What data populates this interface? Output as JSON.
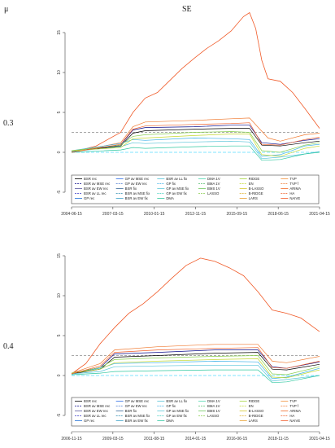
{
  "header": {
    "param_label": "μ",
    "metric_label": "SE"
  },
  "colors": {
    "BSR rec": "#000000",
    "BSR av MSE rec": "#0a0a8a",
    "BSR av EW rec": "#5a5aa0",
    "BSR av LL rec": "#3a3ac8",
    "GP rec": "#1e6fd6",
    "GP av MSE rec": "#2d6ee8",
    "GP av EW rec": "#4a7ad0",
    "BSR fix": "#3a6a9a",
    "BSR av MSE fix": "#2a8ab0",
    "BSR av EW fix": "#3aa0c8",
    "BSR av LL fix": "#55c3d8",
    "GP fix": "#3ab0e8",
    "GP av MSE fix": "#60c8d8",
    "GP av EW fix": "#40d0c0",
    "DMA": "#30c8a0",
    "DMA 1V": "#50d8b0",
    "BMA 1V": "#58c070",
    "BMS 1V": "#70c860",
    "LASSO": "#8ad050",
    "RIDGE": "#a6d640",
    "EN": "#c4d830",
    "B-LASSO": "#d6c830",
    "B-RIDGE": "#e0b430",
    "LARS": "#e8a030",
    "TVP": "#f0903a",
    "TVP f": "#f07a30",
    "ARIMA": "#f06a28",
    "HA": "#f0602a",
    "NAIVE": "#f05a28"
  },
  "chart_data": [
    {
      "type": "line",
      "panel_label": "0.3",
      "x_ticks": [
        "2004-06-15",
        "2007-03-15",
        "2010-01-15",
        "2012-11-15",
        "2015-09-15",
        "2018-06-15",
        "2021-04-15"
      ],
      "y_ticks": [
        "-5",
        "0",
        "5",
        "10",
        "15"
      ],
      "ylim": [
        -5,
        15
      ],
      "n_points": 203,
      "legend_columns": [
        [
          "BSR rec",
          "BSR av MSE rec",
          "BSR av EW rec",
          "BSR av LL rec",
          "GP rec"
        ],
        [
          "GP av MSE rec",
          "GP av EW rec",
          "BSR fix",
          "BSR av MSE fix",
          "BSR av EW fix"
        ],
        [
          "BSR av LL fix",
          "GP fix",
          "GP av MSE fix",
          "GP av EW fix",
          "DMA"
        ],
        [
          "DMA 1V",
          "BMA 1V",
          "BMS 1V",
          "LASSO"
        ],
        [
          "RIDGE",
          "EN",
          "B-LASSO",
          "B-RIDGE",
          "LARS"
        ],
        [
          "TVP",
          "TVP f",
          "ARIMA",
          "HA",
          "NAIVE"
        ]
      ],
      "reference_line": 2.5,
      "series": [
        {
          "name": "NAIVE",
          "x": [
            0,
            20,
            40,
            50,
            60,
            70,
            80,
            90,
            100,
            110,
            120,
            130,
            140,
            145,
            150,
            155,
            160,
            170,
            180,
            190,
            202
          ],
          "values": [
            0.0,
            0.8,
            2.5,
            5.0,
            6.8,
            7.5,
            9.0,
            10.5,
            11.8,
            13.0,
            14.0,
            15.2,
            17.0,
            17.5,
            15.5,
            11.5,
            9.2,
            8.9,
            7.5,
            5.5,
            3.0
          ]
        },
        {
          "name": "TVP f",
          "x": [
            0,
            40,
            50,
            60,
            100,
            130,
            145,
            160,
            170,
            190,
            202
          ],
          "values": [
            0.0,
            1.2,
            3.2,
            3.8,
            4.0,
            4.2,
            4.3,
            1.8,
            1.4,
            2.2,
            2.4
          ]
        },
        {
          "name": "BSR av MSE rec",
          "x": [
            0,
            40,
            50,
            60,
            100,
            130,
            145,
            155,
            170,
            190,
            202
          ],
          "values": [
            0.1,
            0.9,
            2.8,
            3.1,
            3.2,
            3.4,
            3.4,
            1.2,
            1.0,
            1.5,
            1.7
          ]
        },
        {
          "name": "BSR rec",
          "x": [
            0,
            40,
            50,
            60,
            100,
            130,
            145,
            155,
            170,
            190,
            202
          ],
          "values": [
            0.1,
            0.8,
            2.4,
            2.7,
            2.9,
            3.0,
            3.0,
            0.9,
            0.8,
            1.2,
            1.4
          ]
        },
        {
          "name": "GP fix",
          "x": [
            0,
            40,
            50,
            60,
            100,
            130,
            145,
            155,
            170,
            190,
            202
          ],
          "values": [
            0.2,
            1.1,
            1.6,
            1.5,
            1.8,
            1.7,
            1.6,
            -0.5,
            -0.3,
            0.8,
            1.0
          ]
        },
        {
          "name": "BSR av LL fix",
          "x": [
            0,
            40,
            50,
            60,
            100,
            130,
            145,
            155,
            170,
            190,
            202
          ],
          "values": [
            0.1,
            0.7,
            1.2,
            1.1,
            1.3,
            1.4,
            1.3,
            -0.8,
            -0.6,
            -0.2,
            0.1
          ]
        },
        {
          "name": "LASSO",
          "x": [
            0,
            40,
            50,
            60,
            100,
            130,
            145,
            155,
            170,
            190,
            202
          ],
          "values": [
            0.2,
            0.9,
            2.0,
            2.2,
            2.5,
            2.6,
            2.5,
            0.2,
            0.0,
            0.9,
            1.2
          ]
        },
        {
          "name": "EN",
          "x": [
            0,
            40,
            50,
            60,
            100,
            130,
            145,
            155,
            170,
            190,
            202
          ],
          "values": [
            0.2,
            0.6,
            1.7,
            1.8,
            2.1,
            2.3,
            2.3,
            -0.3,
            -0.5,
            0.5,
            0.8
          ]
        },
        {
          "name": "DMA",
          "x": [
            0,
            40,
            50,
            60,
            100,
            130,
            145,
            155,
            170,
            190,
            202
          ],
          "values": [
            0.0,
            0.3,
            0.6,
            0.5,
            0.7,
            0.8,
            0.8,
            -1.0,
            -0.9,
            -0.2,
            0.0
          ]
        },
        {
          "name": "HA",
          "x": [
            0,
            40,
            50,
            60,
            100,
            130,
            145,
            155,
            170,
            190,
            202
          ],
          "values": [
            0.0,
            1.0,
            2.9,
            3.3,
            3.5,
            3.6,
            3.7,
            1.0,
            0.9,
            1.6,
            1.9
          ]
        }
      ]
    },
    {
      "type": "line",
      "panel_label": "0.4",
      "x_ticks": [
        "2006-11-15",
        "2009-03-15",
        "2011-08-15",
        "2014-01-15",
        "2016-06-15",
        "2018-11-15",
        "2021-04-15"
      ],
      "y_ticks": [
        "-5",
        "0",
        "5",
        "10",
        "15"
      ],
      "ylim": [
        -5,
        15
      ],
      "n_points": 174,
      "legend_columns": [
        [
          "BSR rec",
          "BSR av MSE rec",
          "BSR av EW rec",
          "BSR av LL rec",
          "GP rec"
        ],
        [
          "GP av MSE rec",
          "GP av EW rec",
          "BSR fix",
          "BSR av MSE fix",
          "BSR av EW fix"
        ],
        [
          "BSR av LL fix",
          "GP fix",
          "GP av MSE fix",
          "GP av EW fix",
          "DMA"
        ],
        [
          "DMA 1V",
          "BMA 1V",
          "BMS 1V",
          "LASSO"
        ],
        [
          "RIDGE",
          "EN",
          "B-LASSO",
          "B-RIDGE",
          "LARS"
        ],
        [
          "TVP",
          "TVP f",
          "ARIMA",
          "HA",
          "NAIVE"
        ]
      ],
      "reference_line": 2.5,
      "series": [
        {
          "name": "NAIVE",
          "x": [
            0,
            10,
            20,
            30,
            40,
            50,
            60,
            70,
            80,
            90,
            100,
            110,
            120,
            130,
            140,
            150,
            160,
            173
          ],
          "values": [
            0.2,
            1.5,
            4.0,
            6.0,
            7.8,
            9.0,
            10.5,
            12.2,
            13.8,
            14.7,
            14.3,
            13.5,
            12.5,
            10.5,
            8.2,
            7.8,
            7.2,
            5.5
          ]
        },
        {
          "name": "TVP f",
          "x": [
            0,
            20,
            30,
            60,
            100,
            130,
            140,
            150,
            173
          ],
          "values": [
            0.3,
            1.5,
            3.2,
            3.6,
            3.9,
            3.9,
            1.8,
            1.6,
            2.4
          ]
        },
        {
          "name": "BSR av MSE rec",
          "x": [
            0,
            20,
            30,
            60,
            100,
            130,
            140,
            150,
            173
          ],
          "values": [
            0.3,
            1.0,
            2.7,
            2.9,
            3.2,
            3.2,
            1.1,
            0.9,
            1.7
          ]
        },
        {
          "name": "BSR rec",
          "x": [
            0,
            20,
            30,
            60,
            100,
            130,
            140,
            150,
            173
          ],
          "values": [
            0.2,
            0.8,
            2.3,
            2.5,
            2.8,
            2.9,
            0.8,
            0.7,
            1.4
          ]
        },
        {
          "name": "GP fix",
          "x": [
            0,
            20,
            30,
            60,
            100,
            130,
            140,
            150,
            173
          ],
          "values": [
            0.3,
            0.9,
            1.5,
            1.6,
            1.8,
            1.7,
            -0.4,
            -0.2,
            0.9
          ]
        },
        {
          "name": "BSR av LL fix",
          "x": [
            0,
            20,
            30,
            60,
            100,
            130,
            140,
            150,
            173
          ],
          "values": [
            0.2,
            0.5,
            1.1,
            1.2,
            1.3,
            1.3,
            -0.7,
            -0.5,
            0.0
          ]
        },
        {
          "name": "LASSO",
          "x": [
            0,
            20,
            30,
            60,
            100,
            130,
            140,
            150,
            173
          ],
          "values": [
            0.3,
            1.0,
            2.0,
            2.2,
            2.4,
            2.5,
            0.2,
            0.1,
            1.1
          ]
        },
        {
          "name": "EN",
          "x": [
            0,
            20,
            30,
            60,
            100,
            130,
            140,
            150,
            173
          ],
          "values": [
            0.3,
            0.8,
            1.6,
            1.8,
            2.0,
            2.1,
            -0.2,
            -0.3,
            0.7
          ]
        },
        {
          "name": "DMA",
          "x": [
            0,
            20,
            30,
            60,
            100,
            130,
            140,
            150,
            173
          ],
          "values": [
            0.1,
            0.3,
            0.5,
            0.6,
            0.7,
            0.7,
            -0.9,
            -0.8,
            0.0
          ]
        },
        {
          "name": "HA",
          "x": [
            0,
            20,
            30,
            60,
            100,
            130,
            140,
            150,
            173
          ],
          "values": [
            0.2,
            1.2,
            2.9,
            3.2,
            3.4,
            3.5,
            1.0,
            0.9,
            1.8
          ]
        }
      ]
    }
  ]
}
